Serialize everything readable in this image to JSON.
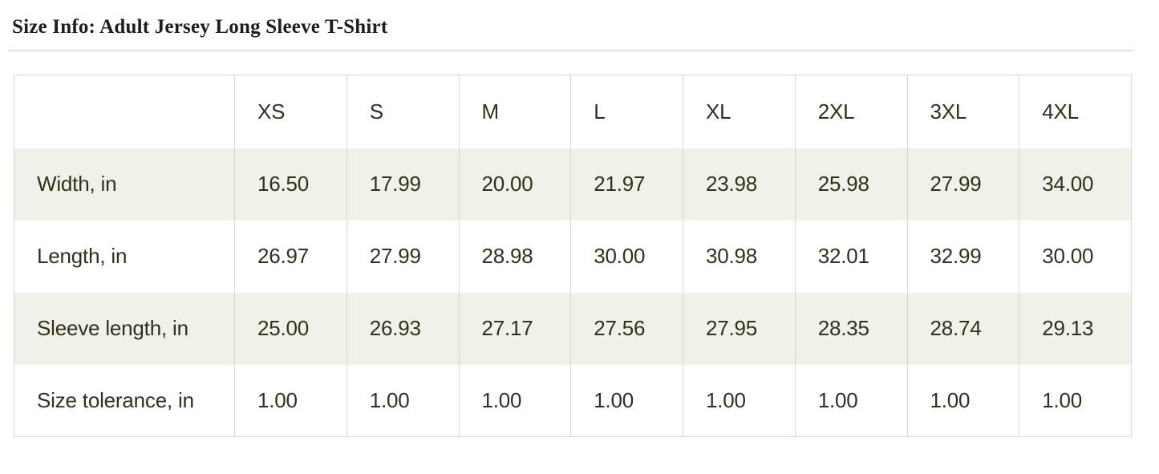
{
  "page": {
    "title": "Size Info: Adult Jersey Long Sleeve T-Shirt"
  },
  "size_table": {
    "columns": [
      "",
      "XS",
      "S",
      "M",
      "L",
      "XL",
      "2XL",
      "3XL",
      "4XL"
    ],
    "rows": [
      {
        "label": "Width, in",
        "values": [
          "16.50",
          "17.99",
          "20.00",
          "21.97",
          "23.98",
          "25.98",
          "27.99",
          "34.00"
        ]
      },
      {
        "label": "Length, in",
        "values": [
          "26.97",
          "27.99",
          "28.98",
          "30.00",
          "30.98",
          "32.01",
          "32.99",
          "30.00"
        ]
      },
      {
        "label": "Sleeve length, in",
        "values": [
          "25.00",
          "26.93",
          "27.17",
          "27.56",
          "27.95",
          "28.35",
          "28.74",
          "29.13"
        ]
      },
      {
        "label": "Size tolerance, in",
        "values": [
          "1.00",
          "1.00",
          "1.00",
          "1.00",
          "1.00",
          "1.00",
          "1.00",
          "1.00"
        ]
      }
    ]
  },
  "colors": {
    "stripe_background": "#f2f1e9",
    "table_border": "#d9d8cf",
    "table_text": "#30301d",
    "title_text": "#1f1e1c",
    "divider": "#e4e2d7"
  }
}
